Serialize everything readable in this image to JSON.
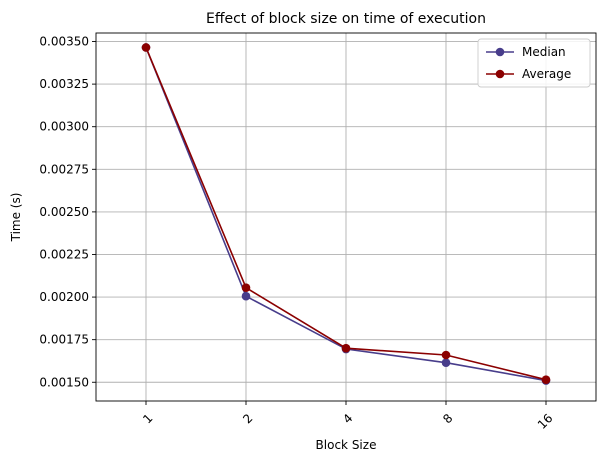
{
  "chart_data": {
    "type": "line",
    "title": "Effect of block size on time of execution",
    "xlabel": "Block Size",
    "ylabel": "Time (s)",
    "categories": [
      "1",
      "2",
      "4",
      "8",
      "16"
    ],
    "y_ticks": [
      0.0015,
      0.00175,
      0.002,
      0.00225,
      0.0025,
      0.00275,
      0.003,
      0.00325,
      0.0035
    ],
    "y_tick_labels": [
      "0.00150",
      "0.00175",
      "0.00200",
      "0.00225",
      "0.00250",
      "0.00275",
      "0.00300",
      "0.00325",
      "0.00350"
    ],
    "ylim": [
      0.00139,
      0.00355
    ],
    "grid": true,
    "legend_position": "top-right",
    "x_tick_rotation": "45",
    "series": [
      {
        "name": "Median",
        "color": "#483d8b",
        "marker": "circle",
        "values": [
          0.003465,
          0.002005,
          0.001695,
          0.001615,
          0.00151
        ]
      },
      {
        "name": "Average",
        "color": "#8b0000",
        "marker": "circle",
        "values": [
          0.003465,
          0.002055,
          0.0017,
          0.00166,
          0.001515
        ]
      }
    ]
  }
}
